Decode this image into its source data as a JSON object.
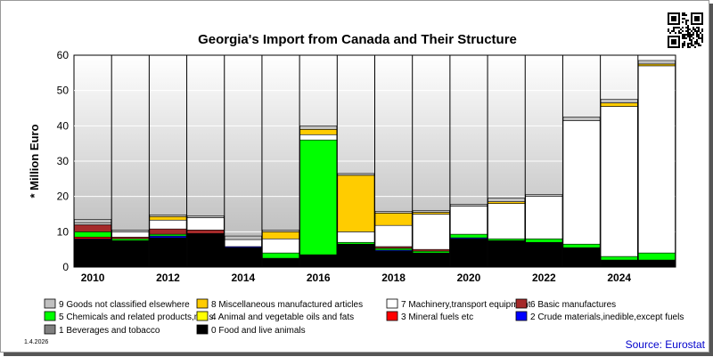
{
  "chart_data": {
    "type": "bar",
    "stacked": true,
    "title": "Georgia's Import from Canada and Their Structure",
    "ylabel": "* Million Euro",
    "xlabel": "",
    "ylim": [
      0,
      60
    ],
    "yticks": [
      0,
      10,
      20,
      30,
      40,
      50,
      60
    ],
    "categories": [
      "2010",
      "2011",
      "2012",
      "2013",
      "2014",
      "2015",
      "2016",
      "2017",
      "2018",
      "2019",
      "2020",
      "2021",
      "2022",
      "2023",
      "2024",
      "2025"
    ],
    "xtick_labels": [
      "2010",
      "2012",
      "2014",
      "2016",
      "2018",
      "2020",
      "2022",
      "2024"
    ],
    "grid": true,
    "legend_position": "bottom",
    "series": [
      {
        "name": "0 Food and live animals",
        "color": "#000000",
        "values": [
          7.8,
          7.5,
          8.3,
          9.5,
          5.5,
          2.5,
          3.5,
          6.5,
          4.5,
          4.0,
          8.0,
          7.5,
          7.0,
          5.5,
          2.0,
          2.0
        ]
      },
      {
        "name": "1 Beverages and tobacco",
        "color": "#808080",
        "values": [
          0,
          0,
          0,
          0,
          0,
          0,
          0,
          0,
          0,
          0,
          0,
          0,
          0,
          0,
          0,
          0
        ]
      },
      {
        "name": "2 Crude materials,inedible,except fuels",
        "color": "#0000ff",
        "values": [
          0.2,
          0,
          0.5,
          0,
          0.3,
          0,
          0,
          0,
          0.3,
          0,
          0.3,
          0,
          0,
          0,
          0,
          0
        ]
      },
      {
        "name": "3 Mineral fuels etc",
        "color": "#ff0000",
        "values": [
          0.5,
          0,
          0,
          0,
          0,
          0,
          0,
          0,
          0,
          0,
          0,
          0,
          0,
          0,
          0,
          0
        ]
      },
      {
        "name": "4 Animal and vegetable oils and fats",
        "color": "#ffff00",
        "values": [
          0,
          0,
          0,
          0,
          0,
          0,
          0,
          0,
          0,
          0,
          0,
          0,
          0,
          0,
          0,
          0
        ]
      },
      {
        "name": "5 Chemicals and related products,n.e.s.",
        "color": "#00ff00",
        "values": [
          1.5,
          0.5,
          0.5,
          0,
          0,
          1.5,
          32.5,
          0.5,
          0.5,
          0.5,
          1.0,
          0.5,
          1.0,
          1.0,
          1.0,
          2.0
        ]
      },
      {
        "name": "6 Basic manufactures",
        "color": "#a52a2a",
        "values": [
          2.0,
          0.5,
          1.5,
          1.0,
          0,
          0,
          0,
          0,
          0.5,
          0.5,
          0,
          0,
          0,
          0,
          0,
          0
        ]
      },
      {
        "name": "7 Machinery,transport equipment",
        "color": "#ffffff",
        "values": [
          0.5,
          1.5,
          2.5,
          3.5,
          2.0,
          4.0,
          1.5,
          3.0,
          6.0,
          10.0,
          8.0,
          10.0,
          12.0,
          35.0,
          42.5,
          53.0
        ]
      },
      {
        "name": "8 Miscellaneous manufactured articles",
        "color": "#ffcc00",
        "values": [
          0,
          0,
          1.0,
          0,
          0,
          2.0,
          1.5,
          16.0,
          3.5,
          0.5,
          0,
          0.5,
          0,
          0,
          1.0,
          0.5
        ]
      },
      {
        "name": "9 Goods not classified elsewhere",
        "color": "#c0c0c0",
        "values": [
          1.0,
          0.5,
          0.5,
          0.5,
          1.0,
          0.5,
          1.0,
          0.5,
          0.5,
          0.5,
          0.5,
          1.0,
          0.5,
          1.0,
          1.0,
          1.0
        ]
      }
    ],
    "source": "Source: Eurostat",
    "date": "1.4.2026"
  }
}
